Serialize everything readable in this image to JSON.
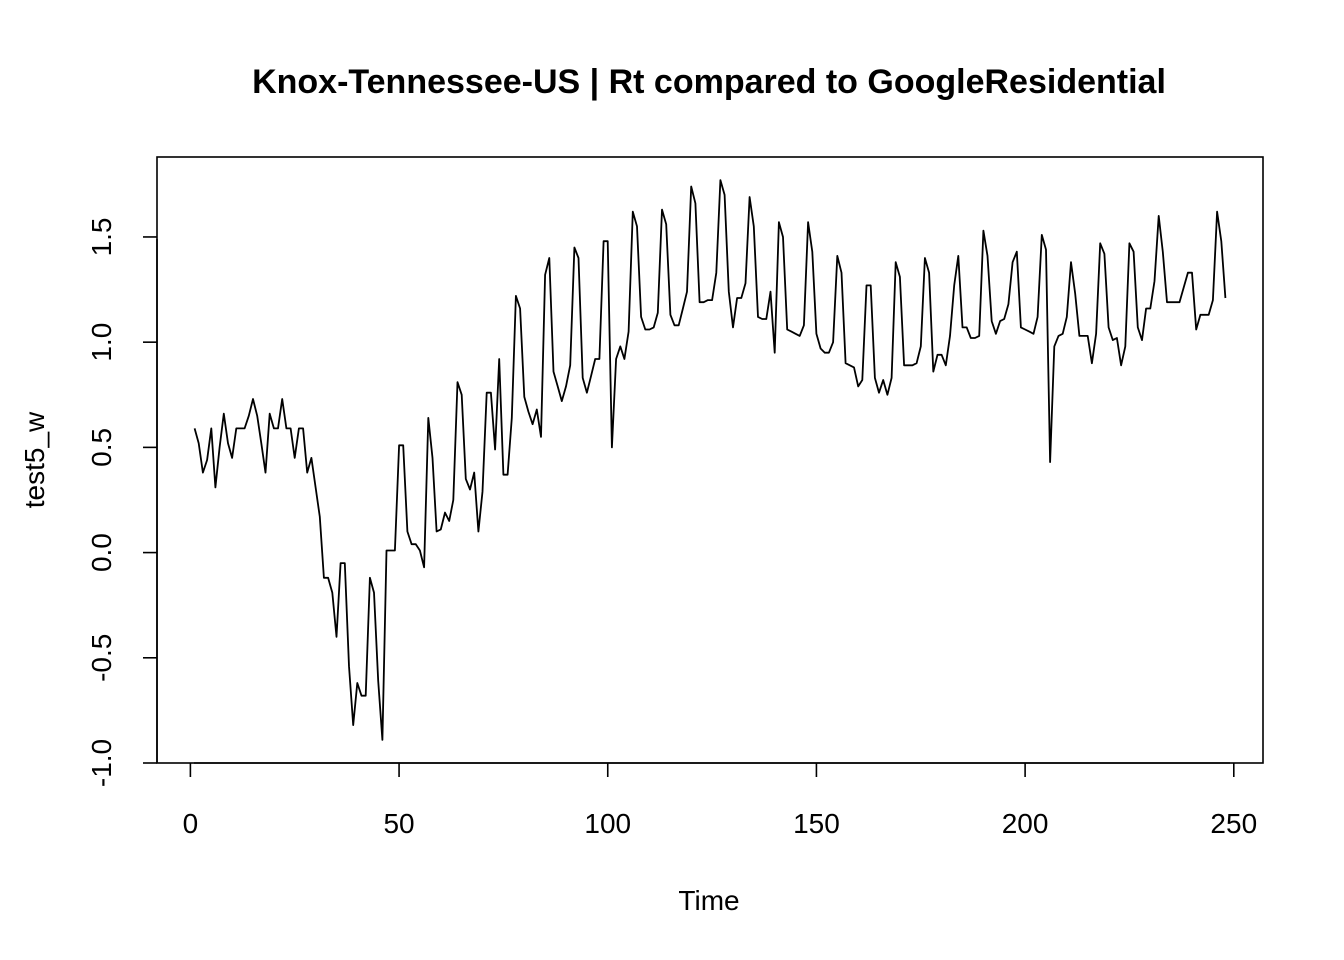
{
  "chart_data": {
    "type": "line",
    "title": "Knox-Tennessee-US | Rt compared to GoogleResidential",
    "xlabel": "Time",
    "ylabel": "test5_w",
    "xlim": [
      -8,
      257
    ],
    "ylim": [
      -1.0,
      1.88
    ],
    "x_ticks": [
      0,
      50,
      100,
      150,
      200,
      250
    ],
    "x_tick_labels": [
      "0",
      "50",
      "100",
      "150",
      "200",
      "250"
    ],
    "y_ticks": [
      -1.0,
      -0.5,
      0.0,
      0.5,
      1.0,
      1.5
    ],
    "y_tick_labels": [
      "-1.0",
      "-0.5",
      "0.0",
      "0.5",
      "1.0",
      "1.5"
    ],
    "grid": false,
    "legend": "none",
    "line_color": "#000000",
    "series": [
      {
        "x_start": 1,
        "values": [
          0.59,
          0.52,
          0.38,
          0.44,
          0.59,
          0.31,
          0.5,
          0.66,
          0.52,
          0.45,
          0.59,
          0.59,
          0.59,
          0.65,
          0.73,
          0.65,
          0.52,
          0.38,
          0.66,
          0.59,
          0.59,
          0.73,
          0.59,
          0.59,
          0.45,
          0.59,
          0.59,
          0.38,
          0.45,
          0.31,
          0.17,
          -0.12,
          -0.12,
          -0.19,
          -0.4,
          -0.05,
          -0.05,
          -0.54,
          -0.82,
          -0.62,
          -0.68,
          -0.68,
          -0.12,
          -0.19,
          -0.61,
          -0.89,
          0.01,
          0.01,
          0.01,
          0.51,
          0.51,
          0.1,
          0.04,
          0.04,
          0.01,
          -0.07,
          0.64,
          0.45,
          0.1,
          0.11,
          0.19,
          0.15,
          0.25,
          0.81,
          0.75,
          0.35,
          0.3,
          0.38,
          0.1,
          0.29,
          0.76,
          0.76,
          0.49,
          0.92,
          0.37,
          0.37,
          0.64,
          1.22,
          1.16,
          0.74,
          0.67,
          0.61,
          0.68,
          0.55,
          1.32,
          1.4,
          0.86,
          0.79,
          0.72,
          0.79,
          0.89,
          1.45,
          1.4,
          0.83,
          0.76,
          0.84,
          0.92,
          0.92,
          1.48,
          1.48,
          0.5,
          0.92,
          0.98,
          0.92,
          1.05,
          1.62,
          1.55,
          1.12,
          1.06,
          1.06,
          1.07,
          1.14,
          1.63,
          1.56,
          1.13,
          1.08,
          1.08,
          1.16,
          1.24,
          1.74,
          1.66,
          1.19,
          1.19,
          1.2,
          1.2,
          1.33,
          1.77,
          1.7,
          1.24,
          1.07,
          1.21,
          1.21,
          1.28,
          1.69,
          1.55,
          1.12,
          1.11,
          1.11,
          1.24,
          0.95,
          1.57,
          1.5,
          1.06,
          1.05,
          1.04,
          1.03,
          1.08,
          1.57,
          1.43,
          1.04,
          0.97,
          0.95,
          0.95,
          1.0,
          1.41,
          1.33,
          0.9,
          0.89,
          0.88,
          0.79,
          0.82,
          1.27,
          1.27,
          0.83,
          0.76,
          0.82,
          0.75,
          0.83,
          1.38,
          1.31,
          0.89,
          0.89,
          0.89,
          0.9,
          0.98,
          1.4,
          1.33,
          0.86,
          0.94,
          0.94,
          0.89,
          1.03,
          1.27,
          1.41,
          1.07,
          1.07,
          1.02,
          1.02,
          1.03,
          1.53,
          1.41,
          1.1,
          1.04,
          1.1,
          1.11,
          1.18,
          1.38,
          1.43,
          1.07,
          1.06,
          1.05,
          1.04,
          1.12,
          1.51,
          1.44,
          0.43,
          0.98,
          1.03,
          1.04,
          1.12,
          1.38,
          1.23,
          1.03,
          1.03,
          1.03,
          0.9,
          1.04,
          1.47,
          1.42,
          1.07,
          1.01,
          1.02,
          0.89,
          0.98,
          1.47,
          1.43,
          1.07,
          1.01,
          1.16,
          1.16,
          1.29,
          1.6,
          1.43,
          1.19,
          1.19,
          1.19,
          1.19,
          1.26,
          1.33,
          1.33,
          1.06,
          1.13,
          1.13,
          1.13,
          1.2,
          1.62,
          1.48,
          1.21
        ]
      }
    ]
  }
}
